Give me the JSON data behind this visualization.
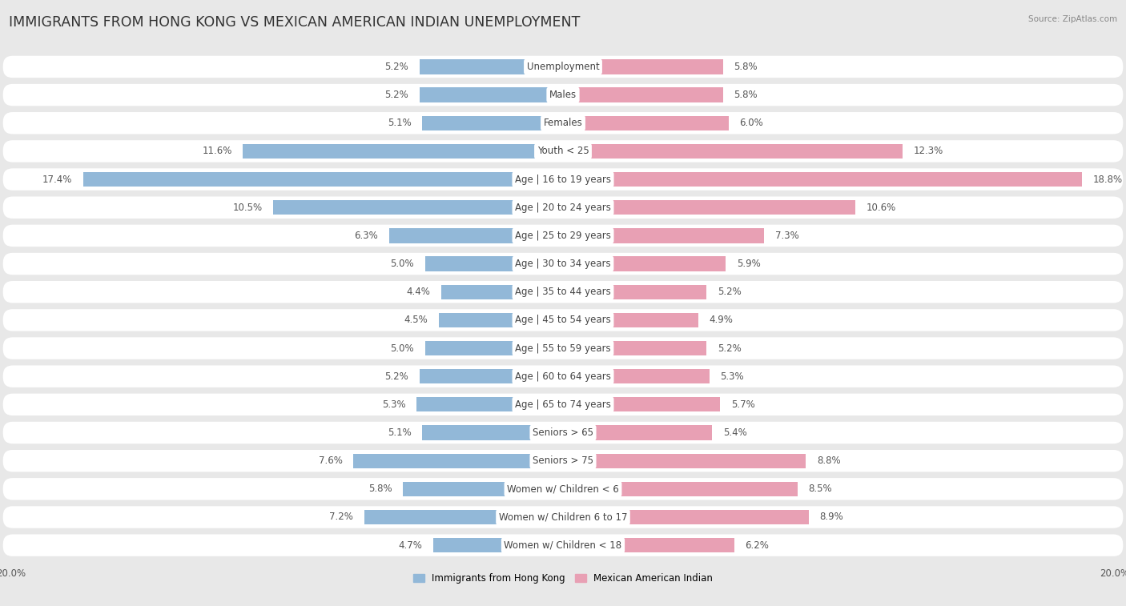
{
  "title": "IMMIGRANTS FROM HONG KONG VS MEXICAN AMERICAN INDIAN UNEMPLOYMENT",
  "source": "Source: ZipAtlas.com",
  "categories": [
    "Unemployment",
    "Males",
    "Females",
    "Youth < 25",
    "Age | 16 to 19 years",
    "Age | 20 to 24 years",
    "Age | 25 to 29 years",
    "Age | 30 to 34 years",
    "Age | 35 to 44 years",
    "Age | 45 to 54 years",
    "Age | 55 to 59 years",
    "Age | 60 to 64 years",
    "Age | 65 to 74 years",
    "Seniors > 65",
    "Seniors > 75",
    "Women w/ Children < 6",
    "Women w/ Children 6 to 17",
    "Women w/ Children < 18"
  ],
  "left_values": [
    5.2,
    5.2,
    5.1,
    11.6,
    17.4,
    10.5,
    6.3,
    5.0,
    4.4,
    4.5,
    5.0,
    5.2,
    5.3,
    5.1,
    7.6,
    5.8,
    7.2,
    4.7
  ],
  "right_values": [
    5.8,
    5.8,
    6.0,
    12.3,
    18.8,
    10.6,
    7.3,
    5.9,
    5.2,
    4.9,
    5.2,
    5.3,
    5.7,
    5.4,
    8.8,
    8.5,
    8.9,
    6.2
  ],
  "left_color": "#92b8d8",
  "right_color": "#e8a0b4",
  "left_label": "Immigrants from Hong Kong",
  "right_label": "Mexican American Indian",
  "max_val": 20.0,
  "bg_color": "#e8e8e8",
  "row_bg_color": "#ffffff",
  "bar_height": 0.52,
  "title_fontsize": 12.5,
  "label_fontsize": 8.5,
  "value_fontsize": 8.5,
  "tick_fontsize": 8.5
}
